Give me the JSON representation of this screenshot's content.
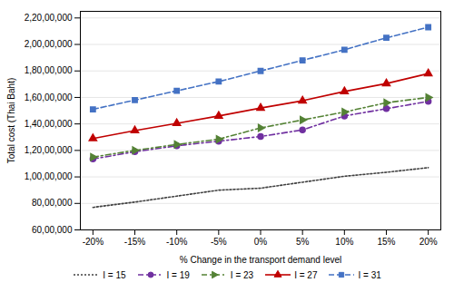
{
  "chart_data": {
    "type": "line",
    "xlabel": "% Change in the transport demand level",
    "ylabel": "Total cost (Thai Baht)",
    "x": [
      -20,
      -15,
      -10,
      -5,
      0,
      5,
      10,
      15,
      20
    ],
    "xlim": [
      -21.5,
      21.5
    ],
    "xticks": [
      {
        "value": -20,
        "label": "-20%"
      },
      {
        "value": -15,
        "label": "-15%"
      },
      {
        "value": -10,
        "label": "-10%"
      },
      {
        "value": -5,
        "label": "-5%"
      },
      {
        "value": 0,
        "label": "0%"
      },
      {
        "value": 5,
        "label": "5%"
      },
      {
        "value": 10,
        "label": "10%"
      },
      {
        "value": 15,
        "label": "15%"
      },
      {
        "value": 20,
        "label": "20%"
      }
    ],
    "ylim": [
      6000000,
      22500000
    ],
    "yticks": [
      {
        "value": 6000000,
        "label": "60,00,000"
      },
      {
        "value": 8000000,
        "label": "80,00,000"
      },
      {
        "value": 10000000,
        "label": "1,00,00,000"
      },
      {
        "value": 12000000,
        "label": "1,20,00,000"
      },
      {
        "value": 14000000,
        "label": "1,40,00,000"
      },
      {
        "value": 16000000,
        "label": "1,60,00,000"
      },
      {
        "value": 18000000,
        "label": "1,80,00,000"
      },
      {
        "value": 20000000,
        "label": "2,00,00,000"
      },
      {
        "value": 22000000,
        "label": "2,20,00,000"
      }
    ],
    "grid": true,
    "legend": "bottom",
    "series": [
      {
        "name": "I = 15",
        "color": "#404040",
        "line_style": "dotted",
        "values": [
          7700000,
          8100000,
          8550000,
          9000000,
          9150000,
          9600000,
          10050000,
          10350000,
          10700000
        ]
      },
      {
        "name": "I = 19",
        "color": "#7030A0",
        "line_style": "dashdot",
        "marker": "circle",
        "values": [
          11350000,
          11900000,
          12350000,
          12700000,
          13050000,
          13550000,
          14600000,
          15150000,
          15700000
        ]
      },
      {
        "name": "I = 23",
        "color": "#548235",
        "line_style": "dashdot",
        "marker": "triangle-right",
        "values": [
          11500000,
          12000000,
          12450000,
          12850000,
          13700000,
          14300000,
          14900000,
          15600000,
          16000000
        ]
      },
      {
        "name": "I = 27",
        "color": "#C00000",
        "line_style": "solid",
        "marker": "triangle-up",
        "values": [
          12900000,
          13500000,
          14050000,
          14600000,
          15200000,
          15750000,
          16450000,
          17050000,
          17800000
        ]
      },
      {
        "name": "I = 31",
        "color": "#4472C4",
        "line_style": "dashed",
        "marker": "square",
        "values": [
          15100000,
          15800000,
          16500000,
          17200000,
          18000000,
          18800000,
          19600000,
          20500000,
          21300000
        ]
      }
    ]
  }
}
